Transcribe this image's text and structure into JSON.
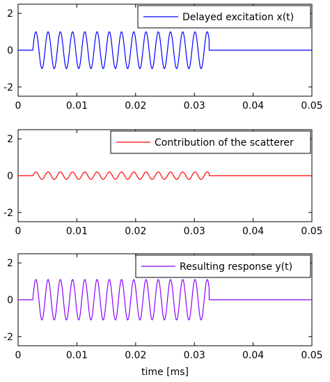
{
  "chart_data": [
    {
      "type": "line",
      "xlim": [
        0,
        0.05
      ],
      "ylim": [
        -2.5,
        2.5
      ],
      "xticks": [
        "0",
        "0.01",
        "0.02",
        "0.03",
        "0.04",
        "0.05"
      ],
      "yticks": [
        "2",
        "0",
        "-2"
      ],
      "xlabel": "",
      "legend": {
        "position": "top-right"
      },
      "grid": false,
      "series": [
        {
          "name": "Delayed excitation x(t)",
          "color": "#0000ff",
          "waveform": "sine burst",
          "amplitude": 1.0,
          "frequency_per_ms": 480,
          "t_start": 0.0025,
          "t_end": 0.0325,
          "value_outside_burst": 0
        }
      ]
    },
    {
      "type": "line",
      "xlim": [
        0,
        0.05
      ],
      "ylim": [
        -2.5,
        2.5
      ],
      "xticks": [
        "0",
        "0.01",
        "0.02",
        "0.03",
        "0.04",
        "0.05"
      ],
      "yticks": [
        "2",
        "0",
        "-2"
      ],
      "xlabel": "",
      "legend": {
        "position": "top-right"
      },
      "grid": false,
      "series": [
        {
          "name": "Contribution of the scatterer",
          "color": "#ff0000",
          "waveform": "sine burst",
          "amplitude": 0.2,
          "frequency_per_ms": 480,
          "t_start": 0.0025,
          "t_end": 0.0325,
          "value_outside_burst": 0
        }
      ]
    },
    {
      "type": "line",
      "xlim": [
        0,
        0.05
      ],
      "ylim": [
        -2.5,
        2.5
      ],
      "xticks": [
        "0",
        "0.01",
        "0.02",
        "0.03",
        "0.04",
        "0.05"
      ],
      "yticks": [
        "2",
        "0",
        "-2"
      ],
      "xlabel": "time [ms]",
      "legend": {
        "position": "top-right"
      },
      "grid": false,
      "series": [
        {
          "name": "Resulting response y(t)",
          "color": "#8b00ff",
          "waveform": "sine burst",
          "amplitude": 1.1,
          "frequency_per_ms": 480,
          "t_start": 0.0025,
          "t_end": 0.0325,
          "value_outside_burst": 0
        }
      ]
    }
  ]
}
